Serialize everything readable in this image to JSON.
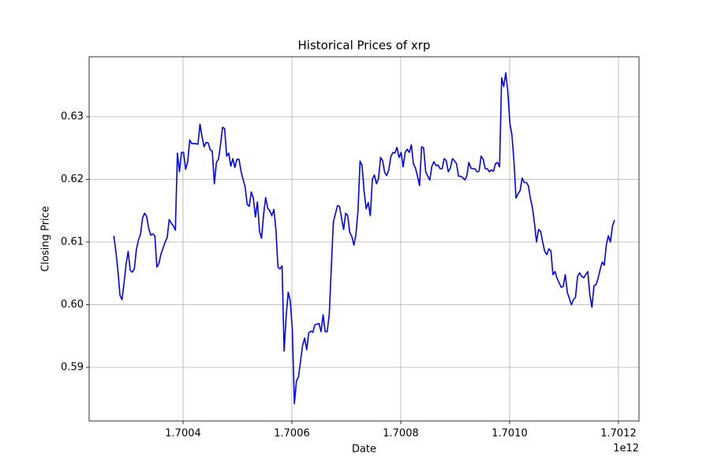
{
  "chart_data": {
    "type": "line",
    "title": "Historical Prices of xrp",
    "x_label": "Date",
    "y_label": "Closing Price",
    "x_offset_text": "1e12",
    "color": "#0000ff",
    "grid": true,
    "xlim": [
      1700227500000,
      1701237700000
    ],
    "ylim": [
      0.58145,
      0.63956
    ],
    "xticks": [
      {
        "value": 1700400000000,
        "label": "1.7004"
      },
      {
        "value": 1700600000000,
        "label": "1.7006"
      },
      {
        "value": 1700800000000,
        "label": "1.7008"
      },
      {
        "value": 1701000000000,
        "label": "1.7010"
      },
      {
        "value": 1701200000000,
        "label": "1.7012"
      }
    ],
    "yticks": [
      0.59,
      {
        "value": 0.6,
        "label": "0.60"
      },
      0.61,
      0.62,
      0.63
    ],
    "x": [
      1700272800000,
      1700276570000,
      1700280340000,
      1700284110000,
      1700287880000,
      1700291650000,
      1700295420000,
      1700299190000,
      1700302960000,
      1700306730000,
      1700310500000,
      1700314270000,
      1700318040000,
      1700321810000,
      1700325580000,
      1700329350000,
      1700333120000,
      1700336890000,
      1700340660000,
      1700344430000,
      1700348200000,
      1700351970000,
      1700355740000,
      1700359510000,
      1700363280000,
      1700367050000,
      1700370820000,
      1700374590000,
      1700378360000,
      1700382130000,
      1700385900000,
      1700389670000,
      1700393440000,
      1700397210000,
      1700400980000,
      1700404750000,
      1700408520000,
      1700412290000,
      1700416060000,
      1700419830000,
      1700423600000,
      1700427370000,
      1700431140000,
      1700434910000,
      1700438680000,
      1700442450000,
      1700446220000,
      1700449990000,
      1700453760000,
      1700457530000,
      1700461300000,
      1700465070000,
      1700468840000,
      1700472610000,
      1700476380000,
      1700480150000,
      1700483920000,
      1700487690000,
      1700491460000,
      1700495230000,
      1700499000000,
      1700502770000,
      1700506540000,
      1700510310000,
      1700514080000,
      1700517850000,
      1700521620000,
      1700525390000,
      1700529160000,
      1700532930000,
      1700536700000,
      1700540470000,
      1700544240000,
      1700548010000,
      1700551780000,
      1700555550000,
      1700559320000,
      1700563090000,
      1700566860000,
      1700570630000,
      1700574400000,
      1700578170000,
      1700581940000,
      1700585710000,
      1700589480000,
      1700593250000,
      1700597020000,
      1700600790000,
      1700604560000,
      1700608330000,
      1700612100000,
      1700615870000,
      1700619640000,
      1700623410000,
      1700627180000,
      1700630950000,
      1700634720000,
      1700638490000,
      1700642260000,
      1700646030000,
      1700649800000,
      1700653570000,
      1700657340000,
      1700661110000,
      1700664880000,
      1700668650000,
      1700672420000,
      1700676190000,
      1700679960000,
      1700683730000,
      1700687500000,
      1700691270000,
      1700695040000,
      1700698810000,
      1700702580000,
      1700706350000,
      1700710120000,
      1700713890000,
      1700717660000,
      1700721430000,
      1700725200000,
      1700728970000,
      1700732740000,
      1700736510000,
      1700740280000,
      1700744050000,
      1700747820000,
      1700751590000,
      1700755360000,
      1700759130000,
      1700762900000,
      1700766670000,
      1700770440000,
      1700774210000,
      1700777980000,
      1700781750000,
      1700785520000,
      1700789290000,
      1700793060000,
      1700796830000,
      1700800600000,
      1700804370000,
      1700808140000,
      1700811910000,
      1700815680000,
      1700819450000,
      1700823220000,
      1700826990000,
      1700830760000,
      1700834530000,
      1700838300000,
      1700842070000,
      1700845840000,
      1700849610000,
      1700853380000,
      1700857150000,
      1700860920000,
      1700864690000,
      1700868460000,
      1700872230000,
      1700876000000,
      1700879770000,
      1700883540000,
      1700887310000,
      1700891080000,
      1700894850000,
      1700898620000,
      1700902390000,
      1700906160000,
      1700909930000,
      1700913700000,
      1700917470000,
      1700921240000,
      1700925010000,
      1700928780000,
      1700932550000,
      1700936320000,
      1700940090000,
      1700943860000,
      1700947630000,
      1700951400000,
      1700955170000,
      1700958940000,
      1700962710000,
      1700966480000,
      1700970250000,
      1700974020000,
      1700977790000,
      1700981560000,
      1700985330000,
      1700989100000,
      1700992870000,
      1700996640000,
      1701000410000,
      1701004180000,
      1701007950000,
      1701011720000,
      1701015490000,
      1701019260000,
      1701023030000,
      1701026800000,
      1701030570000,
      1701034340000,
      1701038110000,
      1701041880000,
      1701045650000,
      1701049420000,
      1701053190000,
      1701056960000,
      1701060730000,
      1701064500000,
      1701068270000,
      1701072040000,
      1701075810000,
      1701079580000,
      1701083350000,
      1701087120000,
      1701090890000,
      1701094660000,
      1701098430000,
      1701102200000,
      1701105970000,
      1701109740000,
      1701113510000,
      1701117280000,
      1701121050000,
      1701124820000,
      1701128590000,
      1701132360000,
      1701136130000,
      1701139900000,
      1701143670000,
      1701147440000,
      1701151210000,
      1701154980000,
      1701158750000,
      1701162520000,
      1701166290000,
      1701170060000,
      1701173830000,
      1701177600000,
      1701181370000,
      1701185140000,
      1701188910000,
      1701192680000
    ],
    "values": [
      0.611,
      0.6085,
      0.6055,
      0.6015,
      0.6008,
      0.6035,
      0.6065,
      0.6085,
      0.6055,
      0.6052,
      0.6057,
      0.6088,
      0.6103,
      0.6112,
      0.6138,
      0.6146,
      0.6141,
      0.6122,
      0.6111,
      0.6113,
      0.611,
      0.606,
      0.6066,
      0.6081,
      0.609,
      0.61,
      0.6107,
      0.6136,
      0.613,
      0.6126,
      0.6119,
      0.6242,
      0.6212,
      0.6243,
      0.6243,
      0.6216,
      0.6228,
      0.6263,
      0.6257,
      0.6257,
      0.6257,
      0.6256,
      0.6288,
      0.6268,
      0.6252,
      0.6259,
      0.6258,
      0.6247,
      0.6245,
      0.6193,
      0.6227,
      0.6232,
      0.6255,
      0.6283,
      0.6281,
      0.6237,
      0.6242,
      0.6221,
      0.6233,
      0.6219,
      0.6232,
      0.6232,
      0.6213,
      0.62,
      0.6188,
      0.616,
      0.6157,
      0.618,
      0.617,
      0.614,
      0.6164,
      0.6117,
      0.6106,
      0.6144,
      0.6171,
      0.6154,
      0.615,
      0.6142,
      0.6152,
      0.612,
      0.606,
      0.6057,
      0.6062,
      0.5926,
      0.5982,
      0.602,
      0.6006,
      0.596,
      0.5842,
      0.5878,
      0.5885,
      0.591,
      0.5935,
      0.5947,
      0.5928,
      0.5955,
      0.5958,
      0.5956,
      0.5968,
      0.5969,
      0.597,
      0.5957,
      0.5984,
      0.5957,
      0.5957,
      0.5985,
      0.606,
      0.6132,
      0.6145,
      0.6158,
      0.6157,
      0.6138,
      0.612,
      0.6146,
      0.6142,
      0.6115,
      0.6109,
      0.6095,
      0.6112,
      0.615,
      0.6229,
      0.6222,
      0.618,
      0.6153,
      0.6163,
      0.6142,
      0.62,
      0.6207,
      0.6193,
      0.6201,
      0.6235,
      0.623,
      0.6211,
      0.6206,
      0.6215,
      0.6236,
      0.6243,
      0.6242,
      0.6251,
      0.6235,
      0.6243,
      0.622,
      0.6243,
      0.6248,
      0.6243,
      0.6255,
      0.6225,
      0.6218,
      0.6205,
      0.619,
      0.6252,
      0.625,
      0.6212,
      0.6205,
      0.6199,
      0.6221,
      0.6228,
      0.6222,
      0.6223,
      0.6217,
      0.6217,
      0.6233,
      0.623,
      0.6212,
      0.6218,
      0.6233,
      0.623,
      0.6225,
      0.6205,
      0.6205,
      0.6203,
      0.6199,
      0.6205,
      0.6227,
      0.6218,
      0.6217,
      0.6217,
      0.6212,
      0.6213,
      0.6237,
      0.6232,
      0.6217,
      0.6217,
      0.6212,
      0.6215,
      0.6213,
      0.6225,
      0.6227,
      0.622,
      0.6362,
      0.6348,
      0.637,
      0.634,
      0.629,
      0.6271,
      0.623,
      0.617,
      0.6177,
      0.6182,
      0.6202,
      0.6195,
      0.6195,
      0.619,
      0.617,
      0.6155,
      0.613,
      0.61,
      0.612,
      0.6117,
      0.61,
      0.6085,
      0.608,
      0.6089,
      0.6086,
      0.6048,
      0.6053,
      0.6042,
      0.6035,
      0.6028,
      0.6029,
      0.6048,
      0.602,
      0.601,
      0.6,
      0.6008,
      0.6012,
      0.6045,
      0.6051,
      0.6045,
      0.6043,
      0.6048,
      0.6053,
      0.6015,
      0.5996,
      0.603,
      0.6032,
      0.6042,
      0.6056,
      0.6068,
      0.6063,
      0.6095,
      0.611,
      0.61,
      0.6125,
      0.6135
    ]
  }
}
